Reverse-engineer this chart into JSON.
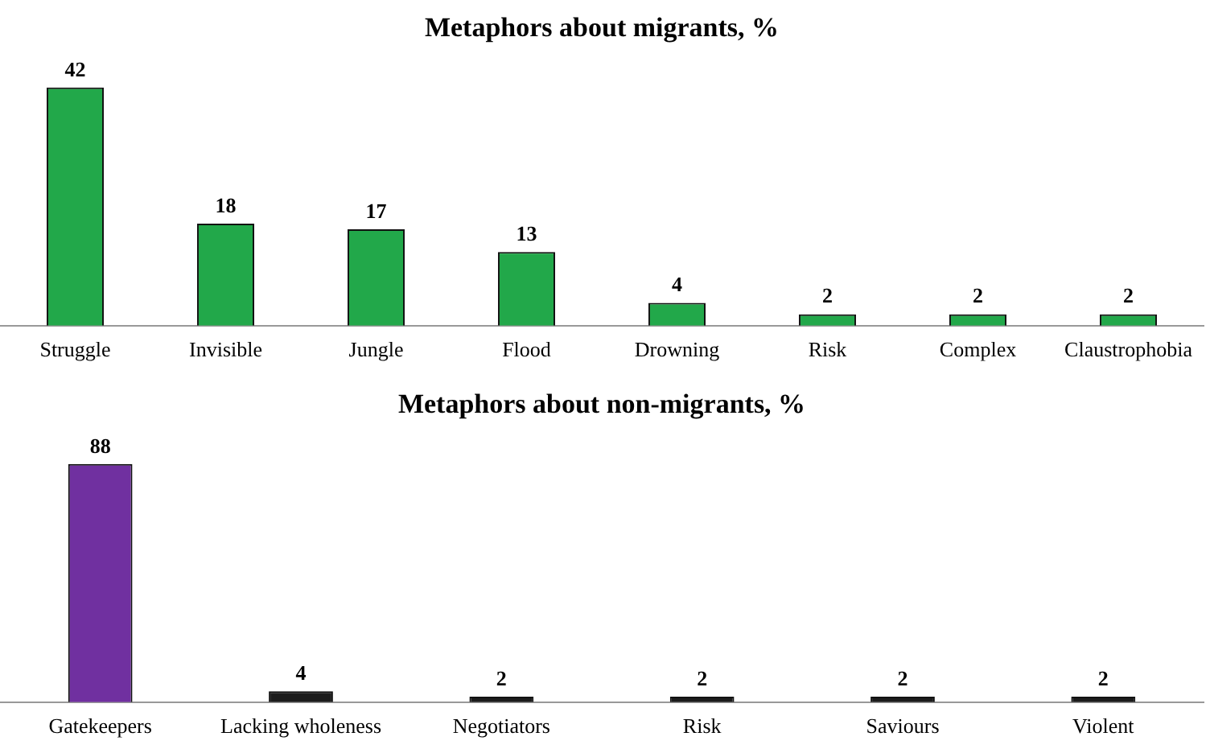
{
  "chart_data": [
    {
      "type": "bar",
      "title": "Metaphors about migrants, %",
      "categories": [
        "Struggle",
        "Invisible",
        "Jungle",
        "Flood",
        "Drowning",
        "Risk",
        "Complex",
        "Claustrophobia"
      ],
      "values": [
        42,
        18,
        17,
        13,
        4,
        2,
        2,
        2
      ],
      "color": "#22a84a",
      "data_labels": true,
      "legend": false,
      "grid": false
    },
    {
      "type": "bar",
      "title": "Metaphors about non-migrants, %",
      "categories": [
        "Gatekeepers",
        "Lacking wholeness",
        "Negotiators",
        "Risk",
        "Saviours",
        "Violent"
      ],
      "values": [
        88,
        4,
        2,
        2,
        2,
        2
      ],
      "colors": [
        "#7030a0",
        "#1c1c1c",
        "#1c1c1c",
        "#1c1c1c",
        "#1c1c1c",
        "#1c1c1c"
      ],
      "data_labels": true,
      "legend": false,
      "grid": false
    }
  ]
}
